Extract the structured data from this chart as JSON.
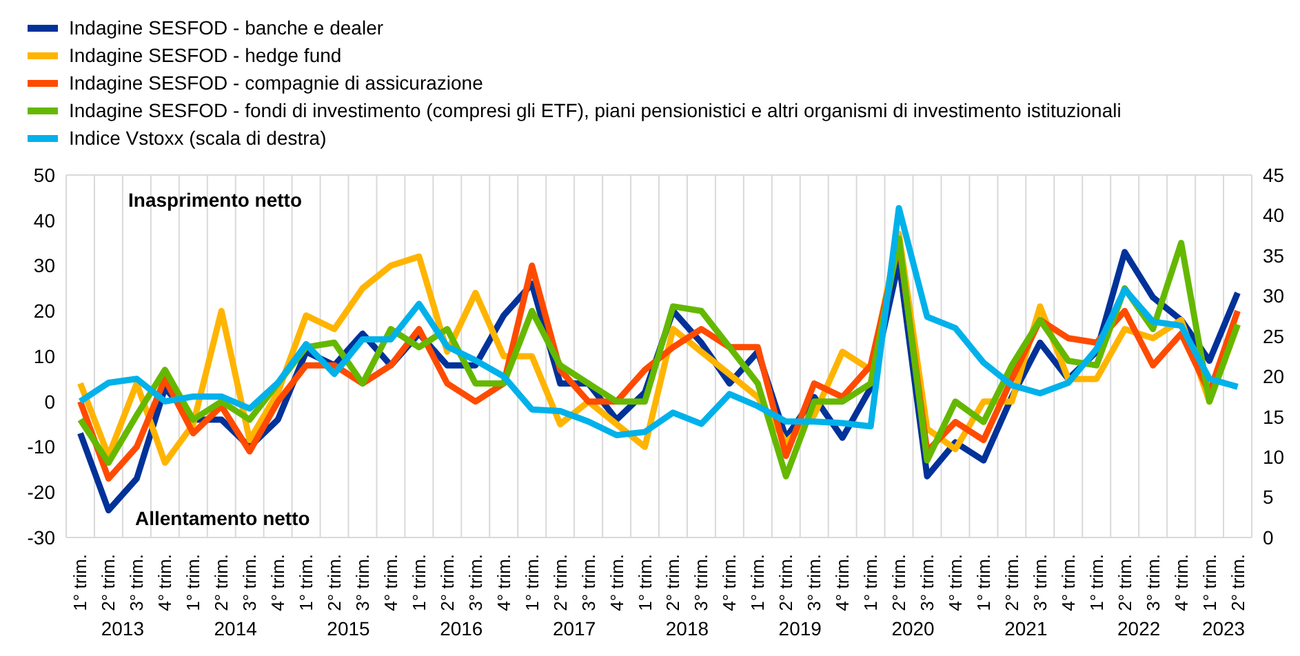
{
  "chart_data": {
    "type": "line",
    "categories": [
      "1° trim.",
      "2° trim.",
      "3° trim.",
      "4° trim.",
      "1° trim.",
      "2° trim.",
      "3° trim.",
      "4° trim.",
      "1° trim.",
      "2° trim.",
      "3° trim.",
      "4° trim.",
      "1° trim.",
      "2° trim.",
      "3° trim.",
      "4° trim.",
      "1° trim.",
      "2° trim.",
      "3° trim.",
      "4° trim.",
      "1° trim.",
      "2° trim.",
      "3° trim.",
      "4° trim.",
      "1° trim.",
      "2° trim.",
      "3° trim.",
      "4° trim.",
      "1° trim.",
      "2° trim.",
      "3° trim.",
      "4° trim.",
      "1° trim.",
      "2° trim.",
      "3° trim.",
      "4° trim.",
      "1° trim.",
      "2° trim.",
      "3° trim.",
      "4° trim.",
      "1° trim.",
      "2° trim."
    ],
    "series": [
      {
        "name": "Indagine SESFOD - banche e dealer",
        "color": "#003299",
        "values": [
          -7,
          -24,
          -17,
          3,
          -4,
          -4,
          -10,
          -4,
          11,
          8,
          15,
          8,
          15,
          8,
          8,
          19,
          26,
          4,
          4,
          -4,
          2,
          20,
          13,
          4,
          11,
          -8,
          1,
          -8,
          3,
          31,
          -16.5,
          -9,
          -13,
          1,
          13,
          5,
          11,
          33,
          23,
          18,
          9,
          24
        ]
      },
      {
        "name": "Indagine SESFOD - hedge fund",
        "color": "#ffb400",
        "values": [
          4,
          -12,
          4,
          -13.5,
          -5,
          20,
          -8.5,
          2,
          19,
          16,
          25,
          30,
          32,
          11,
          24,
          10,
          10,
          -5,
          0,
          -5,
          -10,
          16,
          11,
          6,
          1,
          -9,
          -3,
          11,
          7,
          37,
          -6,
          -10.5,
          0,
          0,
          21,
          5,
          5,
          16,
          14,
          18,
          0,
          17
        ]
      },
      {
        "name": "Indagine SESFOD - compagnie di assicurazione",
        "color": "#ff4b00",
        "values": [
          0,
          -17,
          -10,
          5,
          -7,
          -1,
          -11,
          0,
          8,
          8,
          4,
          8,
          16,
          4,
          0,
          4,
          30,
          7,
          0,
          0,
          7,
          12,
          16,
          12,
          12,
          -12,
          4,
          1,
          8,
          35,
          -11,
          -4.5,
          -8.5,
          5,
          18,
          14,
          13,
          20,
          8,
          15,
          2,
          20
        ]
      },
      {
        "name": "Indagine SESFOD - fondi di investimento (compresi gli ETF), piani pensionistici e altri organismi di investimento istituzionali",
        "color": "#65b800",
        "values": [
          -4,
          -13.5,
          -3,
          7,
          -4,
          0,
          -4,
          4,
          12,
          13,
          4,
          16,
          12,
          16,
          4,
          4,
          20,
          8,
          4,
          0,
          0,
          21,
          20,
          12,
          4,
          -16.5,
          0,
          0,
          4,
          36,
          -13,
          0,
          -4.5,
          8,
          18,
          9,
          8,
          25,
          16,
          35,
          0,
          17
        ]
      },
      {
        "name": "Indice Vstoxx (scala di destra)",
        "color": "#00b1ea",
        "axis": "y2",
        "values": [
          16.9,
          19.2,
          19.7,
          16.9,
          17.5,
          17.5,
          16,
          19.2,
          24,
          20.3,
          24.6,
          24.6,
          29,
          23.7,
          22,
          20,
          15.9,
          15.7,
          14.4,
          12.7,
          13.1,
          15.5,
          14.1,
          17.8,
          16.3,
          14.4,
          14.4,
          14.2,
          13.8,
          40.9,
          27.4,
          26,
          21.7,
          18.9,
          17.9,
          19.2,
          23.4,
          30.8,
          26.8,
          26.3,
          19.7,
          18.7
        ]
      }
    ],
    "ylim": [
      -30,
      50
    ],
    "yticks": [
      -30,
      -20,
      -10,
      0,
      10,
      20,
      30,
      40,
      50
    ],
    "y2lim": [
      0,
      45
    ],
    "y2ticks": [
      0,
      5,
      10,
      15,
      20,
      25,
      30,
      35,
      40,
      45
    ],
    "annotations": [
      "Inasprimento netto",
      "Allentamento netto",
      "2013",
      "2014",
      "2015",
      "2016",
      "2017",
      "2018",
      "2019",
      "2020",
      "2021",
      "2022",
      "2023"
    ],
    "grid": true,
    "legend": "top left",
    "marker": "none",
    "line_style": "solid"
  }
}
